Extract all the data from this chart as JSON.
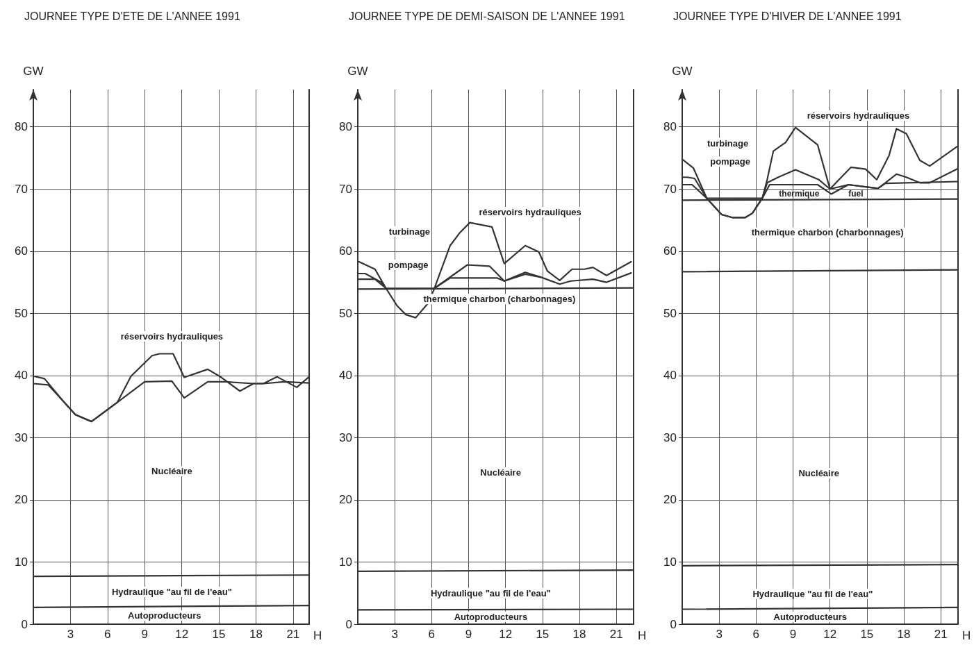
{
  "chart_data": [
    {
      "type": "line",
      "title": "JOURNEE TYPE D'ETE DE L'ANNEE 1991",
      "xlabel": "H",
      "ylabel": "GW",
      "xlim": [
        0,
        22.3
      ],
      "xticks": [
        3,
        6,
        9,
        12,
        15,
        18,
        21
      ],
      "ylim": [
        0,
        86
      ],
      "yticks": [
        0,
        10,
        20,
        30,
        40,
        50,
        60,
        70,
        80
      ],
      "grid": true,
      "marker": "none",
      "line_style": "solid",
      "series": [
        {
          "color": "#333333",
          "x": [
            0,
            22.3
          ],
          "values": [
            2.7,
            3.0
          ]
        },
        {
          "color": "#333333",
          "x": [
            0,
            22.3
          ],
          "values": [
            7.7,
            7.9
          ]
        },
        {
          "color": "#333333",
          "x": [
            0,
            1.2,
            2.4,
            3.4,
            4.7,
            6.8,
            9.0,
            11.2,
            12.2,
            14.1,
            15.5,
            17.8,
            18.6,
            20.3,
            22.3
          ],
          "values": [
            38.7,
            38.5,
            35.9,
            33.7,
            32.6,
            35.7,
            39.0,
            39.1,
            36.4,
            39.0,
            39.0,
            38.7,
            38.7,
            39.0,
            38.8
          ]
        },
        {
          "color": "#333333",
          "x": [
            0,
            0.9,
            2.4,
            3.4,
            4.7,
            6.8,
            7.9,
            9.6,
            10.2,
            11.3,
            12.2,
            14.1,
            15.2,
            16.7,
            17.8,
            18.6,
            19.7,
            21.3,
            22.3
          ],
          "values": [
            39.9,
            39.5,
            35.9,
            33.7,
            32.6,
            35.7,
            39.9,
            43.2,
            43.5,
            43.5,
            39.7,
            41.0,
            39.7,
            37.5,
            38.7,
            38.7,
            39.8,
            38.1,
            39.8
          ]
        }
      ],
      "annotations": [
        "réservoirs hydrauliques",
        "Nucléaire",
        "Hydraulique \"au fil de l'eau\"",
        "Autoproducteurs"
      ]
    },
    {
      "type": "line",
      "title": "JOURNEE TYPE DE DEMI-SAISON DE L'ANNEE 1991",
      "xlabel": "H",
      "ylabel": "GW",
      "xlim": [
        0,
        22.4
      ],
      "xticks": [
        3,
        6,
        9,
        12,
        15,
        18,
        21
      ],
      "ylim": [
        0,
        86
      ],
      "yticks": [
        0,
        10,
        20,
        30,
        40,
        50,
        60,
        70,
        80
      ],
      "grid": true,
      "marker": "none",
      "line_style": "solid",
      "series": [
        {
          "color": "#333333",
          "x": [
            0,
            22.4
          ],
          "values": [
            2.3,
            2.4
          ]
        },
        {
          "color": "#333333",
          "x": [
            0,
            22.4
          ],
          "values": [
            8.5,
            8.7
          ]
        },
        {
          "color": "#333333",
          "x": [
            0,
            22.4
          ],
          "values": [
            53.9,
            54.1
          ]
        },
        {
          "color": "#333333",
          "x": [
            0,
            1.4,
            2.3,
            6.2,
            7.5,
            11.3,
            11.9,
            13.6,
            14.9,
            16.4,
            17.3,
            19.1,
            20.2,
            22.2
          ],
          "values": [
            55.5,
            55.5,
            54.0,
            54.0,
            55.7,
            55.7,
            55.2,
            56.3,
            55.8,
            54.7,
            55.2,
            55.5,
            55.0,
            56.5
          ]
        },
        {
          "color": "#333333",
          "x": [
            0,
            0.6,
            1.9,
            2.3,
            6.2,
            8.9,
            10.7,
            11.9,
            13.6,
            14.9
          ],
          "values": [
            56.4,
            56.4,
            55.0,
            54.0,
            54.0,
            57.8,
            57.6,
            55.2,
            56.6,
            55.8
          ]
        },
        {
          "color": "#333333",
          "x": [
            0.1,
            1.4,
            2.3,
            3.2,
            3.9,
            4.7,
            5.7,
            6.2,
            7.5,
            8.3,
            9.1,
            10.9,
            11.9,
            13.6,
            14.7,
            15.4,
            16.4,
            17.4,
            18.4,
            19.1,
            20.2,
            22.2
          ],
          "values": [
            58.3,
            57.1,
            54.0,
            51.2,
            49.8,
            49.3,
            51.6,
            53.9,
            60.9,
            63.0,
            64.6,
            63.9,
            58.0,
            60.9,
            59.9,
            56.8,
            55.3,
            57.1,
            57.1,
            57.4,
            56.1,
            58.3
          ]
        }
      ],
      "annotations": [
        "réservoirs hydrauliques",
        "turbinage",
        "pompage",
        "thermique charbon (charbonnages)",
        "Nucléaire",
        "Hydraulique \"au fil de l'eau\"",
        "Autoproducteurs"
      ]
    },
    {
      "type": "line",
      "title": "JOURNEE TYPE D'HIVER DE L'ANNEE 1991",
      "xlabel": "H",
      "ylabel": "GW",
      "xlim": [
        0,
        22.4
      ],
      "xticks": [
        3,
        6,
        9,
        12,
        15,
        18,
        21
      ],
      "ylim": [
        0,
        86
      ],
      "yticks": [
        0,
        10,
        20,
        30,
        40,
        50,
        60,
        70,
        80
      ],
      "grid": true,
      "marker": "none",
      "line_style": "solid",
      "series": [
        {
          "color": "#333333",
          "x": [
            0,
            22.4
          ],
          "values": [
            2.4,
            2.7
          ]
        },
        {
          "color": "#333333",
          "x": [
            0,
            22.4
          ],
          "values": [
            9.4,
            9.6
          ]
        },
        {
          "color": "#333333",
          "x": [
            0,
            22.4
          ],
          "values": [
            56.7,
            57.0
          ]
        },
        {
          "color": "#333333",
          "x": [
            0,
            22.4
          ],
          "values": [
            68.2,
            68.4
          ]
        },
        {
          "color": "#333333",
          "x": [
            0,
            0.8,
            2.0,
            3.2,
            4.1,
            5.1,
            5.7,
            6.5,
            7.1,
            11.0,
            12.1,
            13.5,
            15.9,
            16.5,
            22.4
          ],
          "values": [
            70.7,
            70.7,
            68.5,
            65.9,
            65.4,
            65.4,
            66.1,
            68.5,
            70.7,
            70.7,
            69.2,
            70.7,
            70.1,
            70.9,
            71.2
          ]
        },
        {
          "color": "#333333",
          "x": [
            0,
            0.4,
            1.0,
            2.0,
            6.5,
            6.9,
            7.8,
            9.2,
            11.1,
            12.0,
            13.5,
            15.9,
            16.5,
            17.4,
            18.2,
            19.3,
            20.1,
            22.4
          ],
          "values": [
            71.9,
            71.9,
            71.7,
            68.5,
            68.5,
            71.0,
            71.9,
            73.1,
            71.5,
            70.0,
            70.7,
            70.1,
            71.0,
            72.4,
            71.9,
            71.0,
            71.0,
            73.3
          ]
        },
        {
          "color": "#333333",
          "x": [
            0,
            0.9,
            2.0,
            3.2,
            4.1,
            5.1,
            5.7,
            6.5,
            6.9,
            7.4,
            8.4,
            9.2,
            11.0,
            12.0,
            13.7,
            14.9,
            15.8,
            16.8,
            17.4,
            18.2,
            19.3,
            20.1,
            22.3
          ],
          "values": [
            74.8,
            73.4,
            68.5,
            65.9,
            65.4,
            65.4,
            66.1,
            68.5,
            71.5,
            76.1,
            77.5,
            79.9,
            77.1,
            70.0,
            73.5,
            73.2,
            71.5,
            75.4,
            79.7,
            78.9,
            74.6,
            73.7,
            76.8
          ]
        }
      ],
      "annotations": [
        "réservoirs hydrauliques",
        "turbinage",
        "pompage",
        "thermique",
        "fuel",
        "thermique charbon (charbonnages)",
        "Nucléaire",
        "Hydraulique \"au fil de l'eau\"",
        "Autoproducteurs"
      ]
    }
  ]
}
